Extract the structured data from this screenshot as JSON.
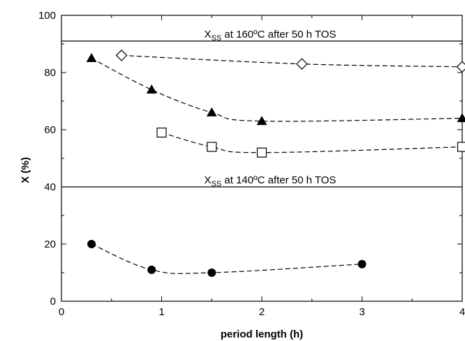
{
  "chart_data": {
    "type": "scatter",
    "title": "",
    "xlabel": "period length (h)",
    "ylabel": "X (%)",
    "xlim": [
      0,
      4
    ],
    "ylim": [
      0,
      100
    ],
    "xticks": [
      0,
      1,
      2,
      3,
      4
    ],
    "yticks": [
      0,
      20,
      40,
      60,
      80,
      100
    ],
    "grid": false,
    "reference_lines": [
      {
        "y": 91,
        "label_main": "X",
        "label_sub": "SS",
        "label_rest": " at 160ºC after 50 h TOS"
      },
      {
        "y": 40,
        "label_main": "X",
        "label_sub": "SS",
        "label_rest": " at 140ºC after 50 h TOS"
      }
    ],
    "series": [
      {
        "marker": "diamond-open",
        "x": [
          0.6,
          2.4,
          4.0
        ],
        "y": [
          86,
          83,
          82
        ]
      },
      {
        "marker": "triangle-filled",
        "x": [
          0.3,
          0.9,
          1.5,
          2.0,
          4.0
        ],
        "y": [
          85,
          74,
          66,
          63,
          64
        ]
      },
      {
        "marker": "square-open",
        "x": [
          1.0,
          1.5,
          2.0,
          4.0
        ],
        "y": [
          59,
          54,
          52,
          54
        ]
      },
      {
        "marker": "circle-filled",
        "x": [
          0.3,
          0.9,
          1.5,
          3.0
        ],
        "y": [
          20,
          11,
          10,
          13
        ]
      }
    ]
  }
}
